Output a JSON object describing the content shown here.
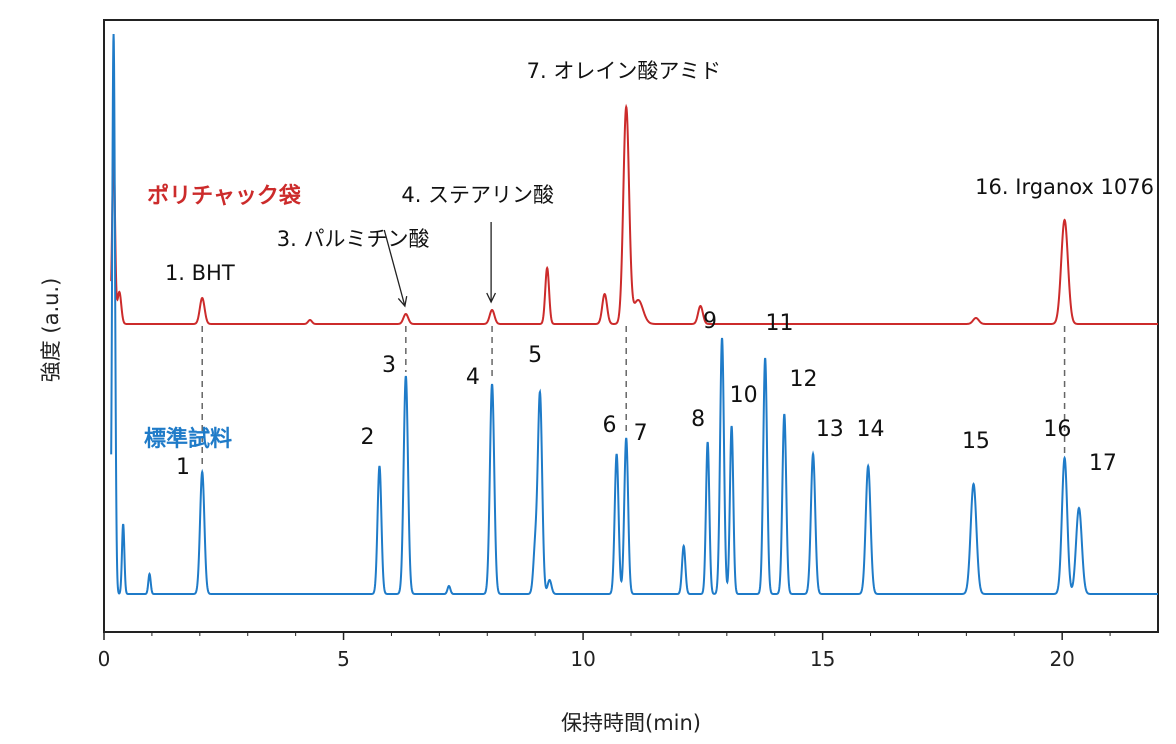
{
  "chart_data": {
    "type": "line",
    "xlabel": "保持時間(min)",
    "ylabel": "強度 (a.u.)",
    "xlim": [
      0,
      22
    ],
    "xticks": [
      0,
      5,
      10,
      15,
      20
    ],
    "grid": false,
    "series": [
      {
        "name": "ポリチャック袋",
        "color": "#cc2b2b",
        "baseline": 0.6,
        "peaks": [
          {
            "x": 0.2,
            "h": 4.3,
            "w": 0.03
          },
          {
            "x": 0.32,
            "h": 0.8,
            "w": 0.04
          },
          {
            "x": 2.05,
            "h": 0.65,
            "w": 0.05
          },
          {
            "x": 4.3,
            "h": 0.1,
            "w": 0.04
          },
          {
            "x": 6.3,
            "h": 0.25,
            "w": 0.05
          },
          {
            "x": 8.1,
            "h": 0.35,
            "w": 0.05
          },
          {
            "x": 9.25,
            "h": 1.4,
            "w": 0.04
          },
          {
            "x": 10.45,
            "h": 0.75,
            "w": 0.05
          },
          {
            "x": 10.9,
            "h": 5.4,
            "w": 0.06
          },
          {
            "x": 11.15,
            "h": 0.6,
            "w": 0.1
          },
          {
            "x": 12.45,
            "h": 0.45,
            "w": 0.05
          },
          {
            "x": 18.2,
            "h": 0.15,
            "w": 0.06
          },
          {
            "x": 20.05,
            "h": 2.6,
            "w": 0.07
          }
        ]
      },
      {
        "name": "標準試料",
        "color": "#1f7bc8",
        "baseline": 0.0,
        "peaks": [
          {
            "x": 0.2,
            "h": 14.0,
            "w": 0.03
          },
          {
            "x": 0.4,
            "h": 1.75,
            "w": 0.025
          },
          {
            "x": 0.95,
            "h": 0.5,
            "w": 0.025
          },
          {
            "x": 2.05,
            "h": 3.05,
            "w": 0.045
          },
          {
            "x": 5.75,
            "h": 3.2,
            "w": 0.04
          },
          {
            "x": 6.3,
            "h": 5.45,
            "w": 0.045
          },
          {
            "x": 7.2,
            "h": 0.2,
            "w": 0.03
          },
          {
            "x": 8.1,
            "h": 5.25,
            "w": 0.045
          },
          {
            "x": 9.0,
            "h": 1.1,
            "w": 0.04
          },
          {
            "x": 9.1,
            "h": 5.0,
            "w": 0.045
          },
          {
            "x": 9.3,
            "h": 0.35,
            "w": 0.04
          },
          {
            "x": 10.7,
            "h": 3.5,
            "w": 0.04
          },
          {
            "x": 10.9,
            "h": 3.9,
            "w": 0.04
          },
          {
            "x": 12.1,
            "h": 1.2,
            "w": 0.035
          },
          {
            "x": 12.6,
            "h": 3.8,
            "w": 0.035
          },
          {
            "x": 12.9,
            "h": 6.4,
            "w": 0.04
          },
          {
            "x": 13.1,
            "h": 4.2,
            "w": 0.035
          },
          {
            "x": 13.8,
            "h": 5.9,
            "w": 0.04
          },
          {
            "x": 14.2,
            "h": 4.5,
            "w": 0.04
          },
          {
            "x": 14.8,
            "h": 3.5,
            "w": 0.045
          },
          {
            "x": 15.95,
            "h": 3.2,
            "w": 0.05
          },
          {
            "x": 18.15,
            "h": 2.75,
            "w": 0.06
          },
          {
            "x": 20.05,
            "h": 3.4,
            "w": 0.055
          },
          {
            "x": 20.35,
            "h": 2.15,
            "w": 0.06
          }
        ]
      }
    ],
    "peak_labels": [
      {
        "text": "1",
        "x": 1.65,
        "series": 1,
        "level": 3.0
      },
      {
        "text": "2",
        "x": 5.5,
        "series": 1,
        "level": 3.75
      },
      {
        "text": "3",
        "x": 5.95,
        "series": 1,
        "level": 5.55
      },
      {
        "text": "4",
        "x": 7.7,
        "series": 1,
        "level": 5.25
      },
      {
        "text": "5",
        "x": 9.0,
        "series": 1,
        "level": 5.8
      },
      {
        "text": "6",
        "x": 10.55,
        "series": 1,
        "level": 4.05
      },
      {
        "text": "7",
        "x": 11.2,
        "series": 1,
        "level": 3.85
      },
      {
        "text": "8",
        "x": 12.4,
        "series": 1,
        "level": 4.2
      },
      {
        "text": "9",
        "x": 12.65,
        "series": 1,
        "level": 6.65
      },
      {
        "text": "10",
        "x": 13.35,
        "series": 1,
        "level": 4.8
      },
      {
        "text": "11",
        "x": 14.1,
        "series": 1,
        "level": 6.6
      },
      {
        "text": "12",
        "x": 14.6,
        "series": 1,
        "level": 5.2
      },
      {
        "text": "13",
        "x": 15.15,
        "series": 1,
        "level": 3.95
      },
      {
        "text": "14",
        "x": 16.0,
        "series": 1,
        "level": 3.95
      },
      {
        "text": "15",
        "x": 18.2,
        "series": 1,
        "level": 3.65
      },
      {
        "text": "16",
        "x": 19.9,
        "series": 1,
        "level": 3.95
      },
      {
        "text": "17",
        "x": 20.85,
        "series": 1,
        "level": 3.1
      }
    ],
    "annotations": [
      {
        "text": "1. BHT",
        "x": 2.0,
        "series": 0,
        "level": 1.1
      },
      {
        "text": "3. パルミチン酸",
        "x": 5.2,
        "series": 0,
        "level": 1.95
      },
      {
        "text": "4. ステアリン酸",
        "x": 7.8,
        "series": 0,
        "level": 3.05
      },
      {
        "text": "7. オレイン酸アミド",
        "x": 10.85,
        "series": 0,
        "level": 6.15
      },
      {
        "text": "16. Irganox 1076",
        "x": 20.05,
        "series": 0,
        "level": 3.25
      }
    ],
    "dashed_links": [
      2.05,
      6.3,
      8.1,
      10.9,
      20.05
    ]
  }
}
